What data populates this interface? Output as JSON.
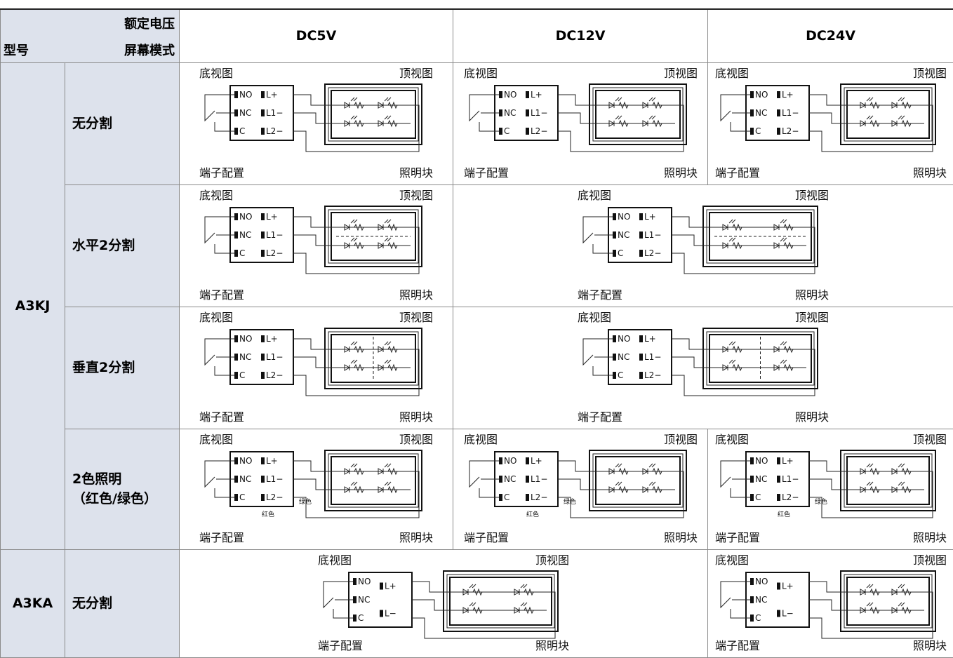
{
  "header": {
    "voltage_label": "额定电压",
    "model_label": "型号",
    "mode_label": "屏幕模式",
    "voltages": [
      "DC5V",
      "DC12V",
      "DC24V"
    ]
  },
  "groups": [
    {
      "model": "A3KJ",
      "rows": [
        {
          "mode": "无分割",
          "cells": [
            {
              "bottom_view": "底视图",
              "top_view": "顶视图",
              "terminal": "端子配置",
              "lighting": "照明块",
              "terminals": [
                "NO",
                "NC",
                "C",
                "L+",
                "L1−",
                "L2−"
              ]
            },
            {
              "bottom_view": "底视图",
              "top_view": "顶视图",
              "terminal": "端子配置",
              "lighting": "照明块",
              "terminals": [
                "NO",
                "NC",
                "C",
                "L+",
                "L1−",
                "L2−"
              ]
            },
            {
              "bottom_view": "底视图",
              "top_view": "顶视图",
              "terminal": "端子配置",
              "lighting": "照明块",
              "terminals": [
                "NO",
                "NC",
                "C",
                "L+",
                "L1−",
                "L2−"
              ]
            }
          ]
        },
        {
          "mode": "水平2分割",
          "cells": [
            {
              "bottom_view": "底视图",
              "top_view": "顶视图",
              "terminal": "端子配置",
              "lighting": "照明块",
              "terminals": [
                "NO",
                "NC",
                "C",
                "L+",
                "L1−",
                "L2−"
              ]
            },
            {
              "bottom_view": "底视图",
              "top_view": "顶视图",
              "terminal": "端子配置",
              "lighting": "照明块",
              "terminals": [
                "NO",
                "NC",
                "C",
                "L+",
                "L1−",
                "L2−"
              ]
            }
          ]
        },
        {
          "mode": "垂直2分割",
          "cells": [
            {
              "bottom_view": "底视图",
              "top_view": "顶视图",
              "terminal": "端子配置",
              "lighting": "照明块",
              "terminals": [
                "NO",
                "NC",
                "C",
                "L+",
                "L1−",
                "L2−"
              ]
            },
            {
              "bottom_view": "底视图",
              "top_view": "顶视图",
              "terminal": "端子配置",
              "lighting": "照明块",
              "terminals": [
                "NO",
                "NC",
                "C",
                "L+",
                "L1−",
                "L2−"
              ]
            }
          ]
        },
        {
          "mode": "2色照明\n（红色/绿色）",
          "cells": [
            {
              "bottom_view": "底视图",
              "top_view": "顶视图",
              "terminal": "端子配置",
              "lighting": "照明块",
              "terminals": [
                "NO",
                "NC",
                "C",
                "L+",
                "L1−",
                "L2−"
              ],
              "wire_colors": [
                "红色",
                "绿色"
              ]
            },
            {
              "bottom_view": "底视图",
              "top_view": "顶视图",
              "terminal": "端子配置",
              "lighting": "照明块",
              "terminals": [
                "NO",
                "NC",
                "C",
                "L+",
                "L1−",
                "L2−"
              ],
              "wire_colors": [
                "红色",
                "绿色"
              ]
            },
            {
              "bottom_view": "底视图",
              "top_view": "顶视图",
              "terminal": "端子配置",
              "lighting": "照明块",
              "terminals": [
                "NO",
                "NC",
                "C",
                "L+",
                "L1−",
                "L2−"
              ],
              "wire_colors": [
                "红色",
                "绿色"
              ]
            }
          ]
        }
      ]
    },
    {
      "model": "A3KA",
      "rows": [
        {
          "mode": "无分割",
          "cells": [
            {
              "bottom_view": "底视图",
              "top_view": "顶视图",
              "terminal": "端子配置",
              "lighting": "照明块",
              "terminals": [
                "NO",
                "NC",
                "C",
                "L+",
                "L−"
              ]
            },
            {
              "bottom_view": "底视图",
              "top_view": "顶视图",
              "terminal": "端子配置",
              "lighting": "照明块",
              "terminals": [
                "NO",
                "NC",
                "C",
                "L+",
                "L−"
              ]
            }
          ]
        }
      ]
    }
  ]
}
